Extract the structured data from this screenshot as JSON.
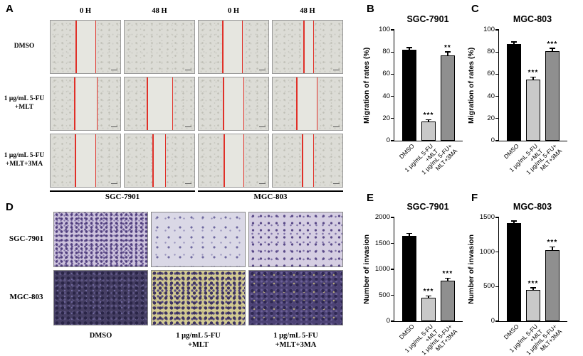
{
  "figure": {
    "background": "#ffffff"
  },
  "panelA": {
    "label": "A",
    "col_headers": [
      "0 H",
      "48 H",
      "0 H",
      "48 H"
    ],
    "rows": [
      {
        "label": "DMSO",
        "lines": [
          [
            36,
            64
          ],
          [],
          [
            34,
            62
          ],
          [
            44,
            58
          ]
        ]
      },
      {
        "label": "1 μg/mL 5-FU\n+MLT",
        "lines": [
          [
            34,
            66
          ],
          [
            32,
            68
          ],
          [
            35,
            64
          ],
          [
            34,
            63
          ]
        ]
      },
      {
        "label": "1 μg/mL 5-FU\n+MLT+3MA",
        "lines": [
          [
            35,
            64
          ],
          [
            40,
            58
          ],
          [
            36,
            64
          ],
          [
            42,
            58
          ]
        ]
      }
    ],
    "group_labels": [
      "SGC-7901",
      "MGC-803"
    ]
  },
  "panelD": {
    "label": "D",
    "row_labels": [
      "SGC-7901",
      "MGC-803"
    ],
    "col_labels": [
      "DMSO",
      "1 μg/mL 5-FU\n+MLT",
      "1 μg/mL 5-FU\n+MLT+3MA"
    ],
    "cell_styles": [
      [
        "sgc-dmso",
        "sgc-mlt",
        "sgc-3ma"
      ],
      [
        "mgc-dmso",
        "mgc-mlt",
        "mgc-3ma"
      ]
    ]
  },
  "chart_data": [
    {
      "panel": "B",
      "type": "bar",
      "title": "SGC-7901",
      "ylabel": "Migration of rates (%)",
      "ylim": [
        0,
        100
      ],
      "yticks": [
        0,
        20,
        40,
        60,
        80,
        100
      ],
      "categories": [
        "DMSO",
        "1 μg/mL 5-FU\n+MLT",
        "1 μg/mL 5-FU+\nMLT+3MA"
      ],
      "values": [
        82,
        17,
        77
      ],
      "errors": [
        1.5,
        1.5,
        2.5
      ],
      "significance": [
        "",
        "***",
        "**"
      ],
      "bar_colors": [
        "#000000",
        "#c9c9c9",
        "#8f8f8f"
      ]
    },
    {
      "panel": "C",
      "type": "bar",
      "title": "MGC-803",
      "ylabel": "Migration of rates (%)",
      "ylim": [
        0,
        100
      ],
      "yticks": [
        0,
        20,
        40,
        60,
        80,
        100
      ],
      "categories": [
        "DMSO",
        "1 μg/mL 5-FU\n+MLT",
        "1 μg/mL 5-FU+\nMLT+3MA"
      ],
      "values": [
        87,
        55,
        81
      ],
      "errors": [
        1.5,
        2,
        2
      ],
      "significance": [
        "",
        "***",
        "***"
      ],
      "bar_colors": [
        "#000000",
        "#c9c9c9",
        "#8f8f8f"
      ]
    },
    {
      "panel": "E",
      "type": "bar",
      "title": "SGC-7901",
      "ylabel": "Number of invasion",
      "ylim": [
        0,
        2000
      ],
      "yticks": [
        0,
        500,
        1000,
        1500,
        2000
      ],
      "categories": [
        "DMSO",
        "1 μg/mL 5-FU\n+MLT",
        "1 μg/mL 5-FU+\nMLT+3MA"
      ],
      "values": [
        1650,
        450,
        780
      ],
      "errors": [
        30,
        25,
        40
      ],
      "significance": [
        "",
        "***",
        "***"
      ],
      "bar_colors": [
        "#000000",
        "#c9c9c9",
        "#8f8f8f"
      ]
    },
    {
      "panel": "F",
      "type": "bar",
      "title": "MGC-803",
      "ylabel": "Number of invasion",
      "ylim": [
        0,
        1500
      ],
      "yticks": [
        0,
        500,
        1000,
        1500
      ],
      "categories": [
        "DMSO",
        "1 μg/mL 5-FU\n+MLT",
        "1 μg/mL 5-FU+\nMLT+3MA"
      ],
      "values": [
        1420,
        450,
        1030
      ],
      "errors": [
        20,
        25,
        35
      ],
      "significance": [
        "",
        "***",
        "***"
      ],
      "bar_colors": [
        "#000000",
        "#c9c9c9",
        "#8f8f8f"
      ]
    }
  ]
}
